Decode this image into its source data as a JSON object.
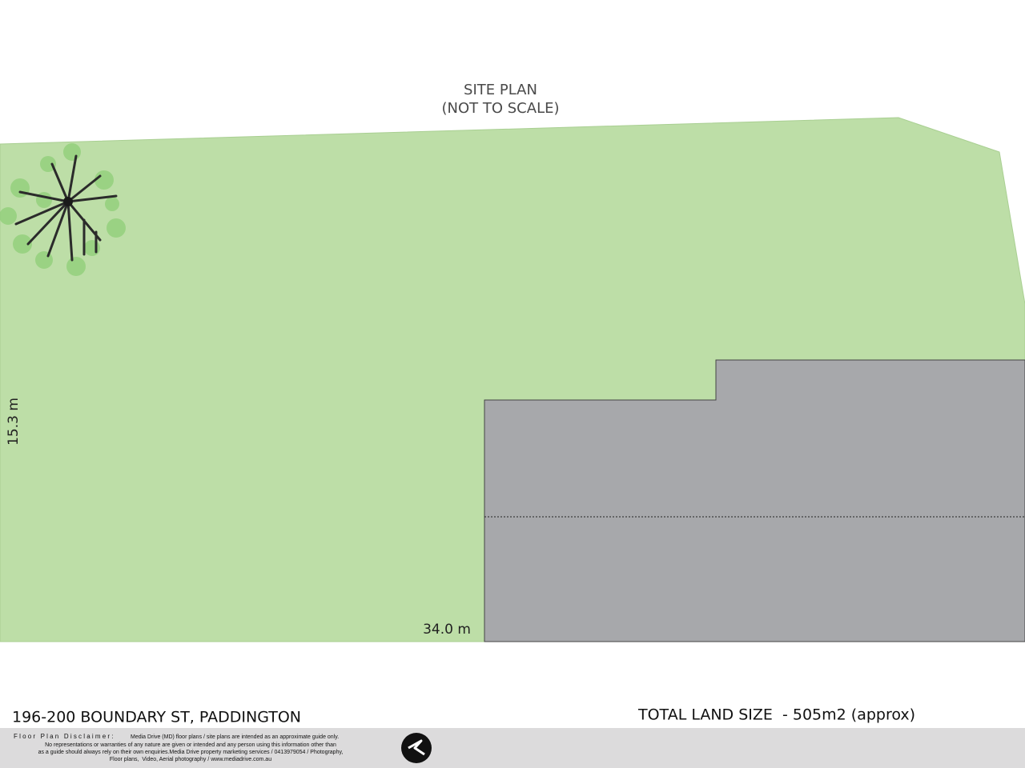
{
  "header": {
    "title": "SITE PLAN",
    "subtitle": "(NOT TO SCALE)"
  },
  "dimensions": {
    "width": "34.0 m",
    "depth": "15.3 m"
  },
  "footer": {
    "address": "196-200 BOUNDARY ST, PADDINGTON",
    "land_size": "TOTAL LAND SIZE  - 505m2 (approx)",
    "disclaimer_heading": "Floor Plan Disclaimer:",
    "disclaimer_lines": [
      "Media Drive (MD) floor plans / site plans are intended as an approximate guide only.",
      "No representations or warranties of any nature are given or intended and any person using this information other than",
      "as a guide should always rely on their own enquiries.Media Drive property marketing services / 0413979054 / Photography,",
      "Floor plans,  Video, Aerial photography / www.mediadrive.com.au"
    ]
  }
}
